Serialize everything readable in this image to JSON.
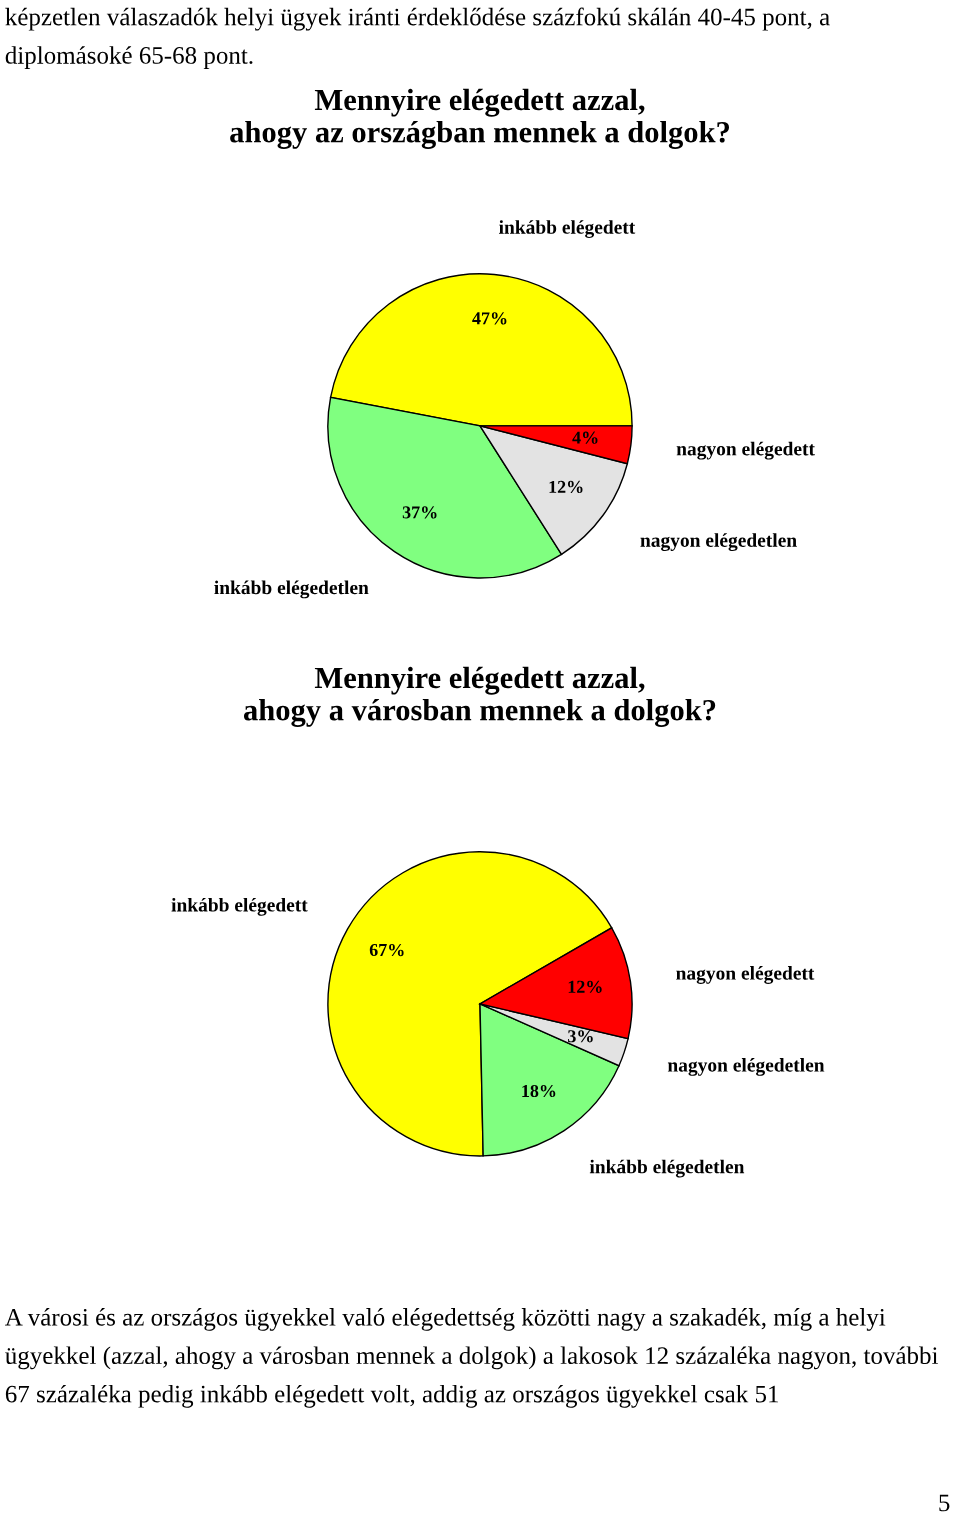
{
  "chart_data": [
    {
      "type": "pie",
      "title": "Mennyire elégedett azzal,\nahogy az országban mennek a dolgok?",
      "categories": [
        "inkább elégedett",
        "inkább elégedetlen",
        "nagyon elégedetlen",
        "nagyon elégedett"
      ],
      "values": [
        47,
        37,
        12,
        4
      ],
      "colors": [
        "#ffff00",
        "#80ff80",
        "#e3e3e3",
        "#ff0000"
      ],
      "value_labels": [
        "47%",
        "37%",
        "12%",
        "4%"
      ],
      "annotations": [
        "képzetlen válaszadók helyi ügyek iránti érdeklődése százfokú skálán 40-45 pont, a diplomásoké 65-68 pont."
      ]
    },
    {
      "type": "pie",
      "title": "Mennyire elégedett azzal,\nahogy a városban mennek a dolgok?",
      "categories": [
        "inkább elégedett",
        "inkább elégedetlen",
        "nagyon elégedetlen",
        "nagyon elégedett"
      ],
      "values": [
        67,
        18,
        3,
        12
      ],
      "colors": [
        "#ffff00",
        "#80ff80",
        "#e3e3e3",
        "#ff0000"
      ],
      "value_labels": [
        "67%",
        "18%",
        "3%",
        "12%"
      ],
      "annotations": [
        "A városi és az országos ügyekkel való elégedettség közötti nagy a szakadék, míg a helyi ügyekkel (azzal, ahogy a városban mennek a dolgok) a lakosok 12 százaléka nagyon, további 67 százaléka pedig inkább elégedett volt, addig az országos ügyekkel csak 51",
        "5"
      ]
    }
  ]
}
